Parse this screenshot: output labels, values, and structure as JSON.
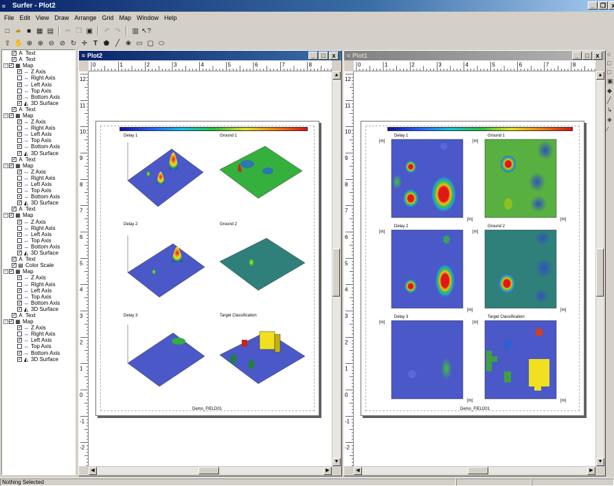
{
  "app": {
    "title": "Surfer - Plot2",
    "icon": "surfer-icon"
  },
  "menu": [
    "File",
    "Edit",
    "View",
    "Draw",
    "Arrange",
    "Grid",
    "Map",
    "Window",
    "Help"
  ],
  "toolbar1": [
    "new-icon",
    "open-icon",
    "save-icon",
    "print-setup-icon",
    "print-icon",
    "cut-icon",
    "copy-icon",
    "paste-icon",
    "undo-icon",
    "redo-icon",
    "object-manager-icon",
    "help-pointer-icon"
  ],
  "toolbar2": [
    "select-icon",
    "pan-icon",
    "zoom-fit-icon",
    "zoom-in-icon",
    "zoom-out-icon",
    "zoom-rect-icon",
    "rotate-icon",
    "reshape-icon",
    "text-icon",
    "polygon-icon",
    "polyline-icon",
    "symbol-icon",
    "rectangle-icon",
    "rounded-rect-icon",
    "ellipse-icon"
  ],
  "tree": [
    {
      "kind": "Text",
      "label": "Text"
    },
    {
      "kind": "Text",
      "label": "Text"
    },
    {
      "kind": "Map",
      "label": "Map",
      "children": [
        "Z Axis",
        "Right Axis",
        "Left Axis",
        "Top Axis",
        "Bottom Axis",
        "3D Surface"
      ]
    },
    {
      "kind": "Text",
      "label": "Text"
    },
    {
      "kind": "Map",
      "label": "Map",
      "children": [
        "Z Axis",
        "Right Axis",
        "Left Axis",
        "Top Axis",
        "Bottom Axis",
        "3D Surface"
      ]
    },
    {
      "kind": "Text",
      "label": "Text"
    },
    {
      "kind": "Map",
      "label": "Map",
      "children": [
        "Z Axis",
        "Right Axis",
        "Left Axis",
        "Top Axis",
        "Bottom Axis",
        "3D Surface"
      ]
    },
    {
      "kind": "Text",
      "label": "Text"
    },
    {
      "kind": "Map",
      "label": "Map",
      "children": [
        "Z Axis",
        "Right Axis",
        "Left Axis",
        "Top Axis",
        "Bottom Axis",
        "3D Surface"
      ]
    },
    {
      "kind": "Text",
      "label": "Text"
    },
    {
      "kind": "ColorScale",
      "label": "Color Scale"
    },
    {
      "kind": "Map",
      "label": "Map",
      "children": [
        "Z Axis",
        "Right Axis",
        "Left Axis",
        "Top Axis",
        "Bottom Axis",
        "3D Surface"
      ]
    },
    {
      "kind": "Text",
      "label": "Text"
    },
    {
      "kind": "Map",
      "label": "Map",
      "children": [
        "Z Axis",
        "Right Axis",
        "Left Axis",
        "Top Axis",
        "Bottom Axis",
        "3D Surface"
      ]
    }
  ],
  "windows": {
    "plot2": {
      "title": "Plot2",
      "ruler_h": [
        "0",
        "1",
        "2",
        "3",
        "4",
        "5",
        "6",
        "7",
        "8"
      ],
      "ruler_v": [
        "12",
        "11",
        "10",
        "9",
        "8",
        "7",
        "6",
        "5",
        "4",
        "3",
        "2",
        "1",
        "0",
        "-1",
        "-2"
      ],
      "labels": [
        "Delay 1",
        "Ground 1",
        "Delay 2",
        "Ground 2",
        "Delay 3",
        "Target Classification"
      ],
      "footer": "Demo_FIELD01"
    },
    "plot1": {
      "title": "Plot1",
      "ruler_h": [
        "0",
        "1",
        "2",
        "3",
        "4",
        "5",
        "6",
        "7",
        "8"
      ],
      "ruler_v": [
        "12",
        "11",
        "10",
        "9",
        "8",
        "7",
        "6",
        "5",
        "4",
        "3",
        "2",
        "1",
        "0",
        "-1",
        "-2"
      ],
      "labels": [
        "Delay 1",
        "Ground 1",
        "Delay 2",
        "Ground 2",
        "Delay 3",
        "Target Classification"
      ],
      "axis_tag": "[m]",
      "footer": "Demo_FIELD01"
    }
  },
  "status": {
    "text": "Nothing Selected"
  },
  "colors": {
    "map_blue": "#4a58c8",
    "map_green": "#3aa040",
    "map_teal": "#2f7f7a",
    "hot_red": "#e01818",
    "hot_yellow": "#f0e020"
  }
}
